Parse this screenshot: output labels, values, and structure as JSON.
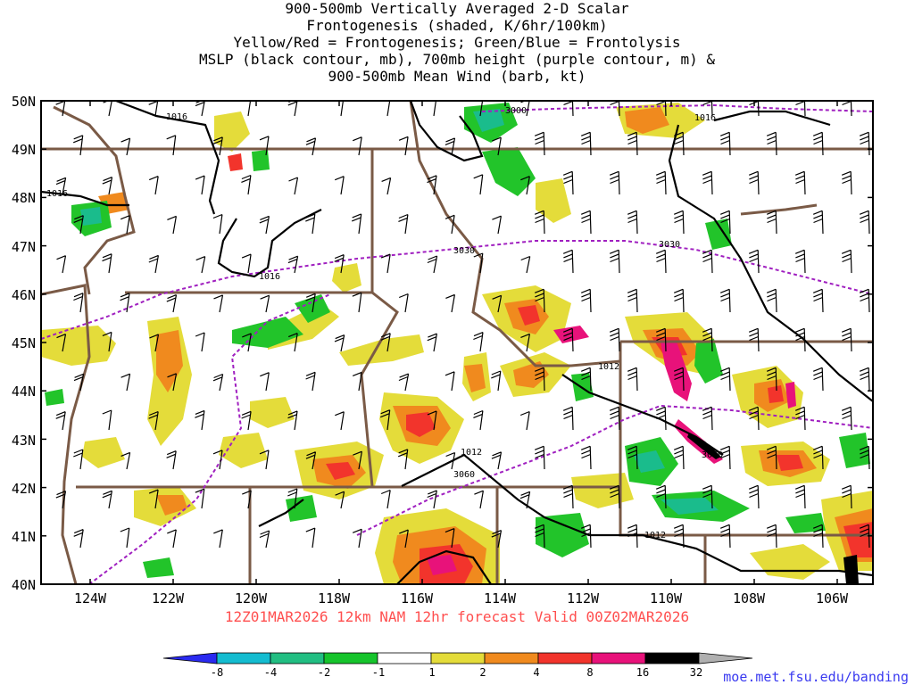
{
  "title": {
    "line1": "900-500mb Vertically Averaged 2-D Scalar",
    "line2": "Frontogenesis (shaded, K/6hr/100km)",
    "line3": "Yellow/Red = Frontogenesis;  Green/Blue = Frontolysis",
    "line4": "MSLP (black contour, mb), 700mb height (purple contour, m) &",
    "line5": "900-500mb Mean Wind (barb, kt)"
  },
  "valid_text": "12Z01MAR2026 12km NAM 12hr forecast Valid 00Z02MAR2026",
  "site_text": "moe.met.fsu.edu/banding",
  "map": {
    "lon_labels": [
      "124W",
      "122W",
      "120W",
      "118W",
      "116W",
      "114W",
      "112W",
      "110W",
      "108W",
      "106W"
    ],
    "lat_labels": [
      "50N",
      "49N",
      "48N",
      "47N",
      "46N",
      "45N",
      "44N",
      "43N",
      "42N",
      "41N",
      "40N"
    ],
    "contour_labels": {
      "mslp": [
        "1016",
        "1016",
        "1016",
        "1016",
        "1012",
        "1012",
        "1012"
      ],
      "height": [
        "3000",
        "3030",
        "3030",
        "3060",
        "3060"
      ]
    },
    "colors": {
      "mslp": "#000000",
      "height": "#a020c0",
      "border": "#7a5a46",
      "yellow": "#e4dc3a",
      "orange": "#f08a1e",
      "red": "#f2342c",
      "magenta": "#e8127a",
      "green": "#22c42a",
      "teal": "#1abc8c"
    }
  },
  "colorbar": {
    "labels": [
      "-8",
      "-4",
      "-2",
      "-1",
      "1",
      "2",
      "4",
      "8",
      "16",
      "32"
    ],
    "colors": [
      "#2a2af0",
      "#14bcd0",
      "#22be82",
      "#16c42c",
      "#ffffff",
      "#e4dc3a",
      "#f08a1e",
      "#f2342c",
      "#e8127a",
      "#000000",
      "#b0b0b0"
    ]
  }
}
